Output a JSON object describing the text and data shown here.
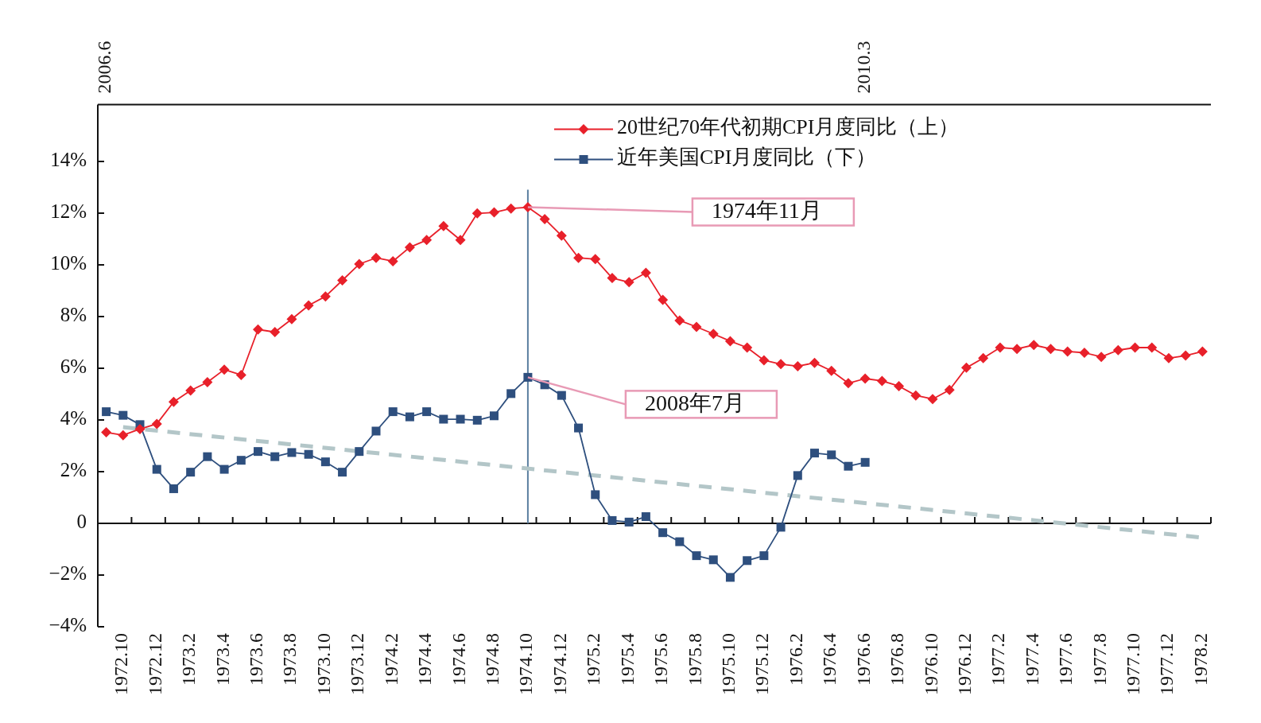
{
  "chart_data": {
    "type": "line",
    "categories": [
      null,
      "1972.10",
      null,
      "1972.12",
      null,
      "1973.2",
      null,
      "1973.4",
      null,
      "1973.6",
      null,
      "1973.8",
      null,
      "1973.10",
      null,
      "1973.12",
      null,
      "1974.2",
      null,
      "1974.4",
      null,
      "1974.6",
      null,
      "1974.8",
      null,
      "1974.10",
      null,
      "1974.12",
      null,
      "1975.2",
      null,
      "1975.4",
      null,
      "1975.6",
      null,
      "1975.8",
      null,
      "1975.10",
      null,
      "1975.12",
      null,
      "1976.2",
      null,
      "1976.4",
      null,
      "1976.6",
      null,
      "1976.8",
      null,
      "1976.10",
      null,
      "1976.12",
      null,
      "1977.2",
      null,
      "1977.4",
      null,
      "1977.6",
      null,
      "1977.8",
      null,
      "1977.10",
      null,
      "1977.12",
      null,
      "1978.2"
    ],
    "series": [
      {
        "name": "20世纪70年代初期CPI月度同比（上）",
        "color": "#e8202a",
        "marker": "diamond",
        "values": [
          3.52,
          3.41,
          3.65,
          3.85,
          4.7,
          5.14,
          5.46,
          5.95,
          5.74,
          7.5,
          7.4,
          7.9,
          8.43,
          8.78,
          9.4,
          10.03,
          10.27,
          10.14,
          10.68,
          10.96,
          11.5,
          10.96,
          11.99,
          12.03,
          12.18,
          12.23,
          11.77,
          11.13,
          10.27,
          10.22,
          9.49,
          9.33,
          9.69,
          8.65,
          7.85,
          7.6,
          7.33,
          7.05,
          6.8,
          6.31,
          6.16,
          6.08,
          6.21,
          5.9,
          5.42,
          5.6,
          5.51,
          5.31,
          4.95,
          4.81,
          5.16,
          6.02,
          6.39,
          6.8,
          6.75,
          6.9,
          6.75,
          6.65,
          6.6,
          6.44,
          6.7,
          6.8,
          6.8,
          6.39,
          6.49,
          6.65
        ]
      },
      {
        "name": "近年美国CPI月度同比（下）",
        "color": "#2e4f7e",
        "marker": "square",
        "values": [
          4.32,
          4.18,
          3.82,
          2.09,
          1.34,
          1.98,
          2.58,
          2.09,
          2.44,
          2.78,
          2.58,
          2.74,
          2.67,
          2.38,
          1.98,
          2.78,
          3.57,
          4.32,
          4.12,
          4.32,
          4.03,
          4.03,
          3.99,
          4.16,
          5.02,
          5.65,
          5.36,
          4.95,
          3.69,
          1.11,
          0.11,
          0.05,
          0.26,
          -0.36,
          -0.71,
          -1.25,
          -1.41,
          -2.09,
          -1.44,
          -1.25,
          -0.15,
          1.85,
          2.72,
          2.65,
          2.21,
          2.36,
          null,
          null,
          null,
          null,
          null,
          null,
          null,
          null,
          null,
          null,
          null,
          null,
          null,
          null,
          null,
          null,
          null,
          null,
          null,
          null
        ]
      },
      {
        "type": "line",
        "color": "#b3c6c8",
        "marker": "none",
        "line_style": "dashed",
        "x": [
          "1972.10",
          "1978.2"
        ],
        "values": [
          3.72,
          -0.55
        ]
      }
    ],
    "ylim": [
      -4,
      16.2
    ],
    "yticks": [
      {
        "value": -4,
        "label": "−4%"
      },
      {
        "value": -2,
        "label": "−2%"
      },
      {
        "value": 0,
        "label": "0"
      },
      {
        "value": 2,
        "label": "2%"
      },
      {
        "value": 4,
        "label": "4%"
      },
      {
        "value": 6,
        "label": "6%"
      },
      {
        "value": 8,
        "label": "8%"
      },
      {
        "value": 10,
        "label": "10%"
      },
      {
        "value": 12,
        "label": "12%"
      },
      {
        "value": 14,
        "label": "14%"
      }
    ],
    "x2lim": [
      "2006-05-16",
      "2011-11-16"
    ],
    "x2ticks": [
      {
        "value": "2006-06",
        "label": "2006.6"
      },
      {
        "value": "2010-03",
        "label": "2010.3"
      }
    ],
    "ref_lines": [
      {
        "axis": "x",
        "value": "1974.10",
        "color": "#5b7fa0"
      }
    ],
    "annotations": [
      {
        "text": "1974年11月",
        "x": "1974.10",
        "y": 12.23
      },
      {
        "text": "2008年7月",
        "x": "1974.10",
        "y": 5.65
      }
    ],
    "legend": "top"
  }
}
